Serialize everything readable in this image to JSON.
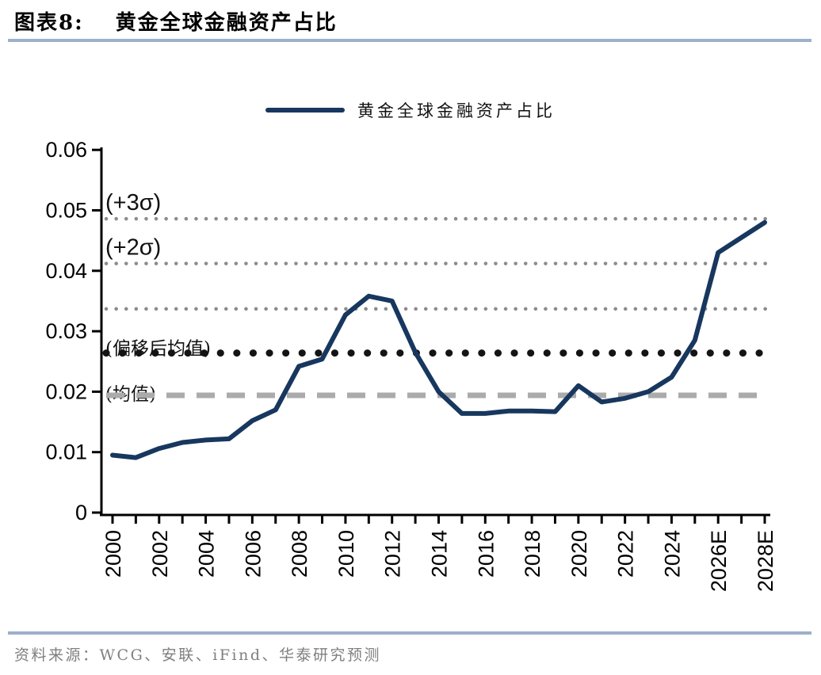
{
  "header": {
    "figure_label": "图表8:",
    "figure_title": "黄金全球金融资产占比"
  },
  "legend": {
    "label": "黄金全球金融资产占比"
  },
  "footer": {
    "source": "资料来源：WCG、安联、iFind、华泰研究预测"
  },
  "colors": {
    "series_line": "#17375E",
    "header_rule": "#9CB0CB",
    "sigma_dotted": "#8C8C8C",
    "shifted_mean_dotted": "#141414",
    "mean_dashed": "#ABABAB",
    "axis": "#000000",
    "source_text": "#7F7F7F"
  },
  "chart_data": {
    "type": "line",
    "title": "黄金全球金融资产占比",
    "xlabel": "",
    "ylabel": "",
    "ylim": [
      0,
      0.06
    ],
    "grid": false,
    "legend_position": "top-center",
    "x": [
      2000,
      2001,
      2002,
      2003,
      2004,
      2005,
      2006,
      2007,
      2008,
      2009,
      2010,
      2011,
      2012,
      2013,
      2014,
      2015,
      2016,
      2017,
      2018,
      2019,
      2020,
      2021,
      2022,
      2023,
      2024,
      2025,
      2026,
      2027,
      2028
    ],
    "series": [
      {
        "name": "黄金全球金融资产占比",
        "color": "#17375E",
        "values": [
          0.0095,
          0.0091,
          0.0106,
          0.0116,
          0.012,
          0.0122,
          0.0152,
          0.017,
          0.0242,
          0.0254,
          0.0327,
          0.0358,
          0.035,
          0.0265,
          0.02,
          0.0164,
          0.0164,
          0.0168,
          0.0168,
          0.0167,
          0.021,
          0.0183,
          0.0189,
          0.02,
          0.0224,
          0.0285,
          0.043,
          0.0455,
          0.048
        ]
      }
    ],
    "x_tick_years": [
      2000,
      2002,
      2004,
      2006,
      2008,
      2010,
      2012,
      2014,
      2016,
      2018,
      2020,
      2022,
      2024,
      2026,
      2028
    ],
    "x_tick_labels": [
      "2000",
      "2002",
      "2004",
      "2006",
      "2008",
      "2010",
      "2012",
      "2014",
      "2016",
      "2018",
      "2020",
      "2022",
      "2024",
      "2026E",
      "2028E"
    ],
    "y_ticks": [
      0,
      0.01,
      0.02,
      0.03,
      0.04,
      0.05,
      0.06
    ],
    "y_tick_labels": [
      "0",
      "0.01",
      "0.02",
      "0.03",
      "0.04",
      "0.05",
      "0.06"
    ],
    "reference_lines": [
      {
        "label": "(+3σ)",
        "value": 0.0486,
        "style": "dotted",
        "color": "#8C8C8C"
      },
      {
        "label": "(+2σ)",
        "value": 0.0412,
        "style": "dotted",
        "color": "#8C8C8C"
      },
      {
        "label": "",
        "value": 0.0337,
        "style": "dotted",
        "color": "#8C8C8C"
      },
      {
        "label": "(偏移后均值)",
        "value": 0.0264,
        "style": "dotted-bold",
        "color": "#141414"
      },
      {
        "label": "(均值)",
        "value": 0.0194,
        "style": "dashed",
        "color": "#ABABAB"
      }
    ]
  }
}
